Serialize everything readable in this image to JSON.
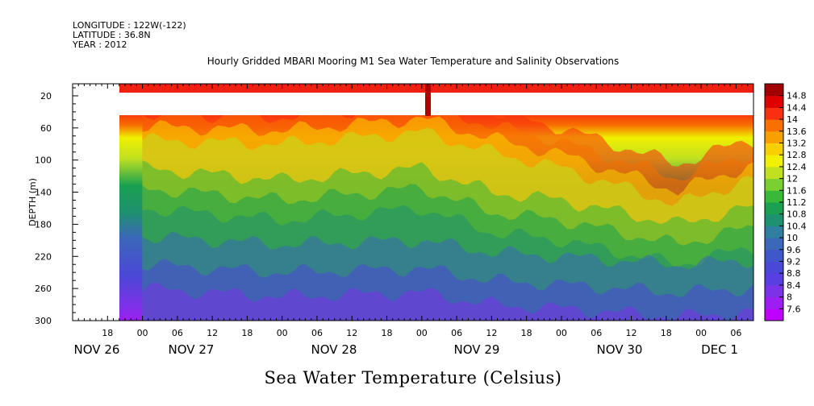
{
  "header": {
    "line1": "LONGITUDE : 122W(-122)",
    "line2": "LATITUDE : 36.8N",
    "line3": "YEAR : 2012",
    "title": "Hourly Gridded MBARI Mooring M1 Sea Water Temperature and Salinity Observations"
  },
  "footer": {
    "variable_title": "Sea Water Temperature (Celsius)"
  },
  "chart_data": {
    "type": "heatmap",
    "title": "Hourly Gridded MBARI Mooring M1 Sea Water Temperature and Salinity Observations",
    "xlabel": "",
    "ylabel": "DEPTH (m)",
    "x_range_hours": [
      "2012-11-26 12:00",
      "2012-12-01 09:00"
    ],
    "data_start": "2012-11-27 00:00",
    "ylim": [
      300,
      5
    ],
    "y_reversed": true,
    "y_ticks": [
      20,
      60,
      100,
      140,
      180,
      220,
      260,
      300
    ],
    "x_hour_ticks": [
      "18",
      "00",
      "06",
      "12",
      "18",
      "00",
      "06",
      "12",
      "18",
      "00",
      "06",
      "12",
      "18",
      "00",
      "06",
      "12",
      "18",
      "00",
      "06"
    ],
    "x_day_labels": [
      "NOV 26",
      "NOV 27",
      "NOV 28",
      "NOV 29",
      "NOV 30",
      "DEC  1"
    ],
    "colorbar": {
      "levels": [
        7.6,
        8,
        8.4,
        8.8,
        9.2,
        9.6,
        10,
        10.4,
        10.8,
        11.2,
        11.6,
        12,
        12.4,
        12.8,
        13.2,
        13.6,
        14,
        14.4,
        14.8
      ],
      "labels": [
        "7.6",
        "8",
        "8.4",
        "8.8",
        "9.2",
        "9.6",
        "10",
        "10.4",
        "10.8",
        "11.2",
        "11.6",
        "12",
        "12.4",
        "12.8",
        "13.2",
        "13.6",
        "14",
        "14.4",
        "14.8"
      ],
      "colors": [
        "#c000ff",
        "#9d1ef0",
        "#7a33e6",
        "#5a3fe0",
        "#4a48d6",
        "#3f57c8",
        "#3b68b8",
        "#2f7fa0",
        "#1f9070",
        "#1aa050",
        "#3ab83a",
        "#7ad030",
        "#c0e020",
        "#f0f000",
        "#f8d000",
        "#f8a000",
        "#f87000",
        "#f83010",
        "#e00000",
        "#a00000"
      ]
    },
    "surface_band": {
      "depth_top": 5,
      "depth_bottom": 15,
      "temperature": 14.6
    },
    "data_gap": {
      "depth_top": 15,
      "depth_bottom": 40,
      "note": "no data"
    },
    "gap_sensor_spike": {
      "time": "2012-11-29 03:00"
    },
    "profile_isotherms_sample": [
      {
        "time": "2012-11-27 00:00",
        "t12_depth": 70,
        "t10_depth": 150,
        "t9_depth": 230
      },
      {
        "time": "2012-11-28 00:00",
        "t12_depth": 75,
        "t10_depth": 165,
        "t9_depth": 240
      },
      {
        "time": "2012-11-29 00:00",
        "t12_depth": 60,
        "t10_depth": 150,
        "t9_depth": 235
      },
      {
        "time": "2012-11-29 12:00",
        "t12_depth": 85,
        "t10_depth": 180,
        "t9_depth": 250
      },
      {
        "time": "2012-11-30 00:00",
        "t12_depth": 105,
        "t10_depth": 190,
        "t9_depth": 255
      },
      {
        "time": "2012-11-30 20:00",
        "t12_depth": 150,
        "t10_depth": 220,
        "t9_depth": 265
      },
      {
        "time": "2012-12-01 08:00",
        "t12_depth": 120,
        "t10_depth": 200,
        "t9_depth": 260
      }
    ]
  }
}
